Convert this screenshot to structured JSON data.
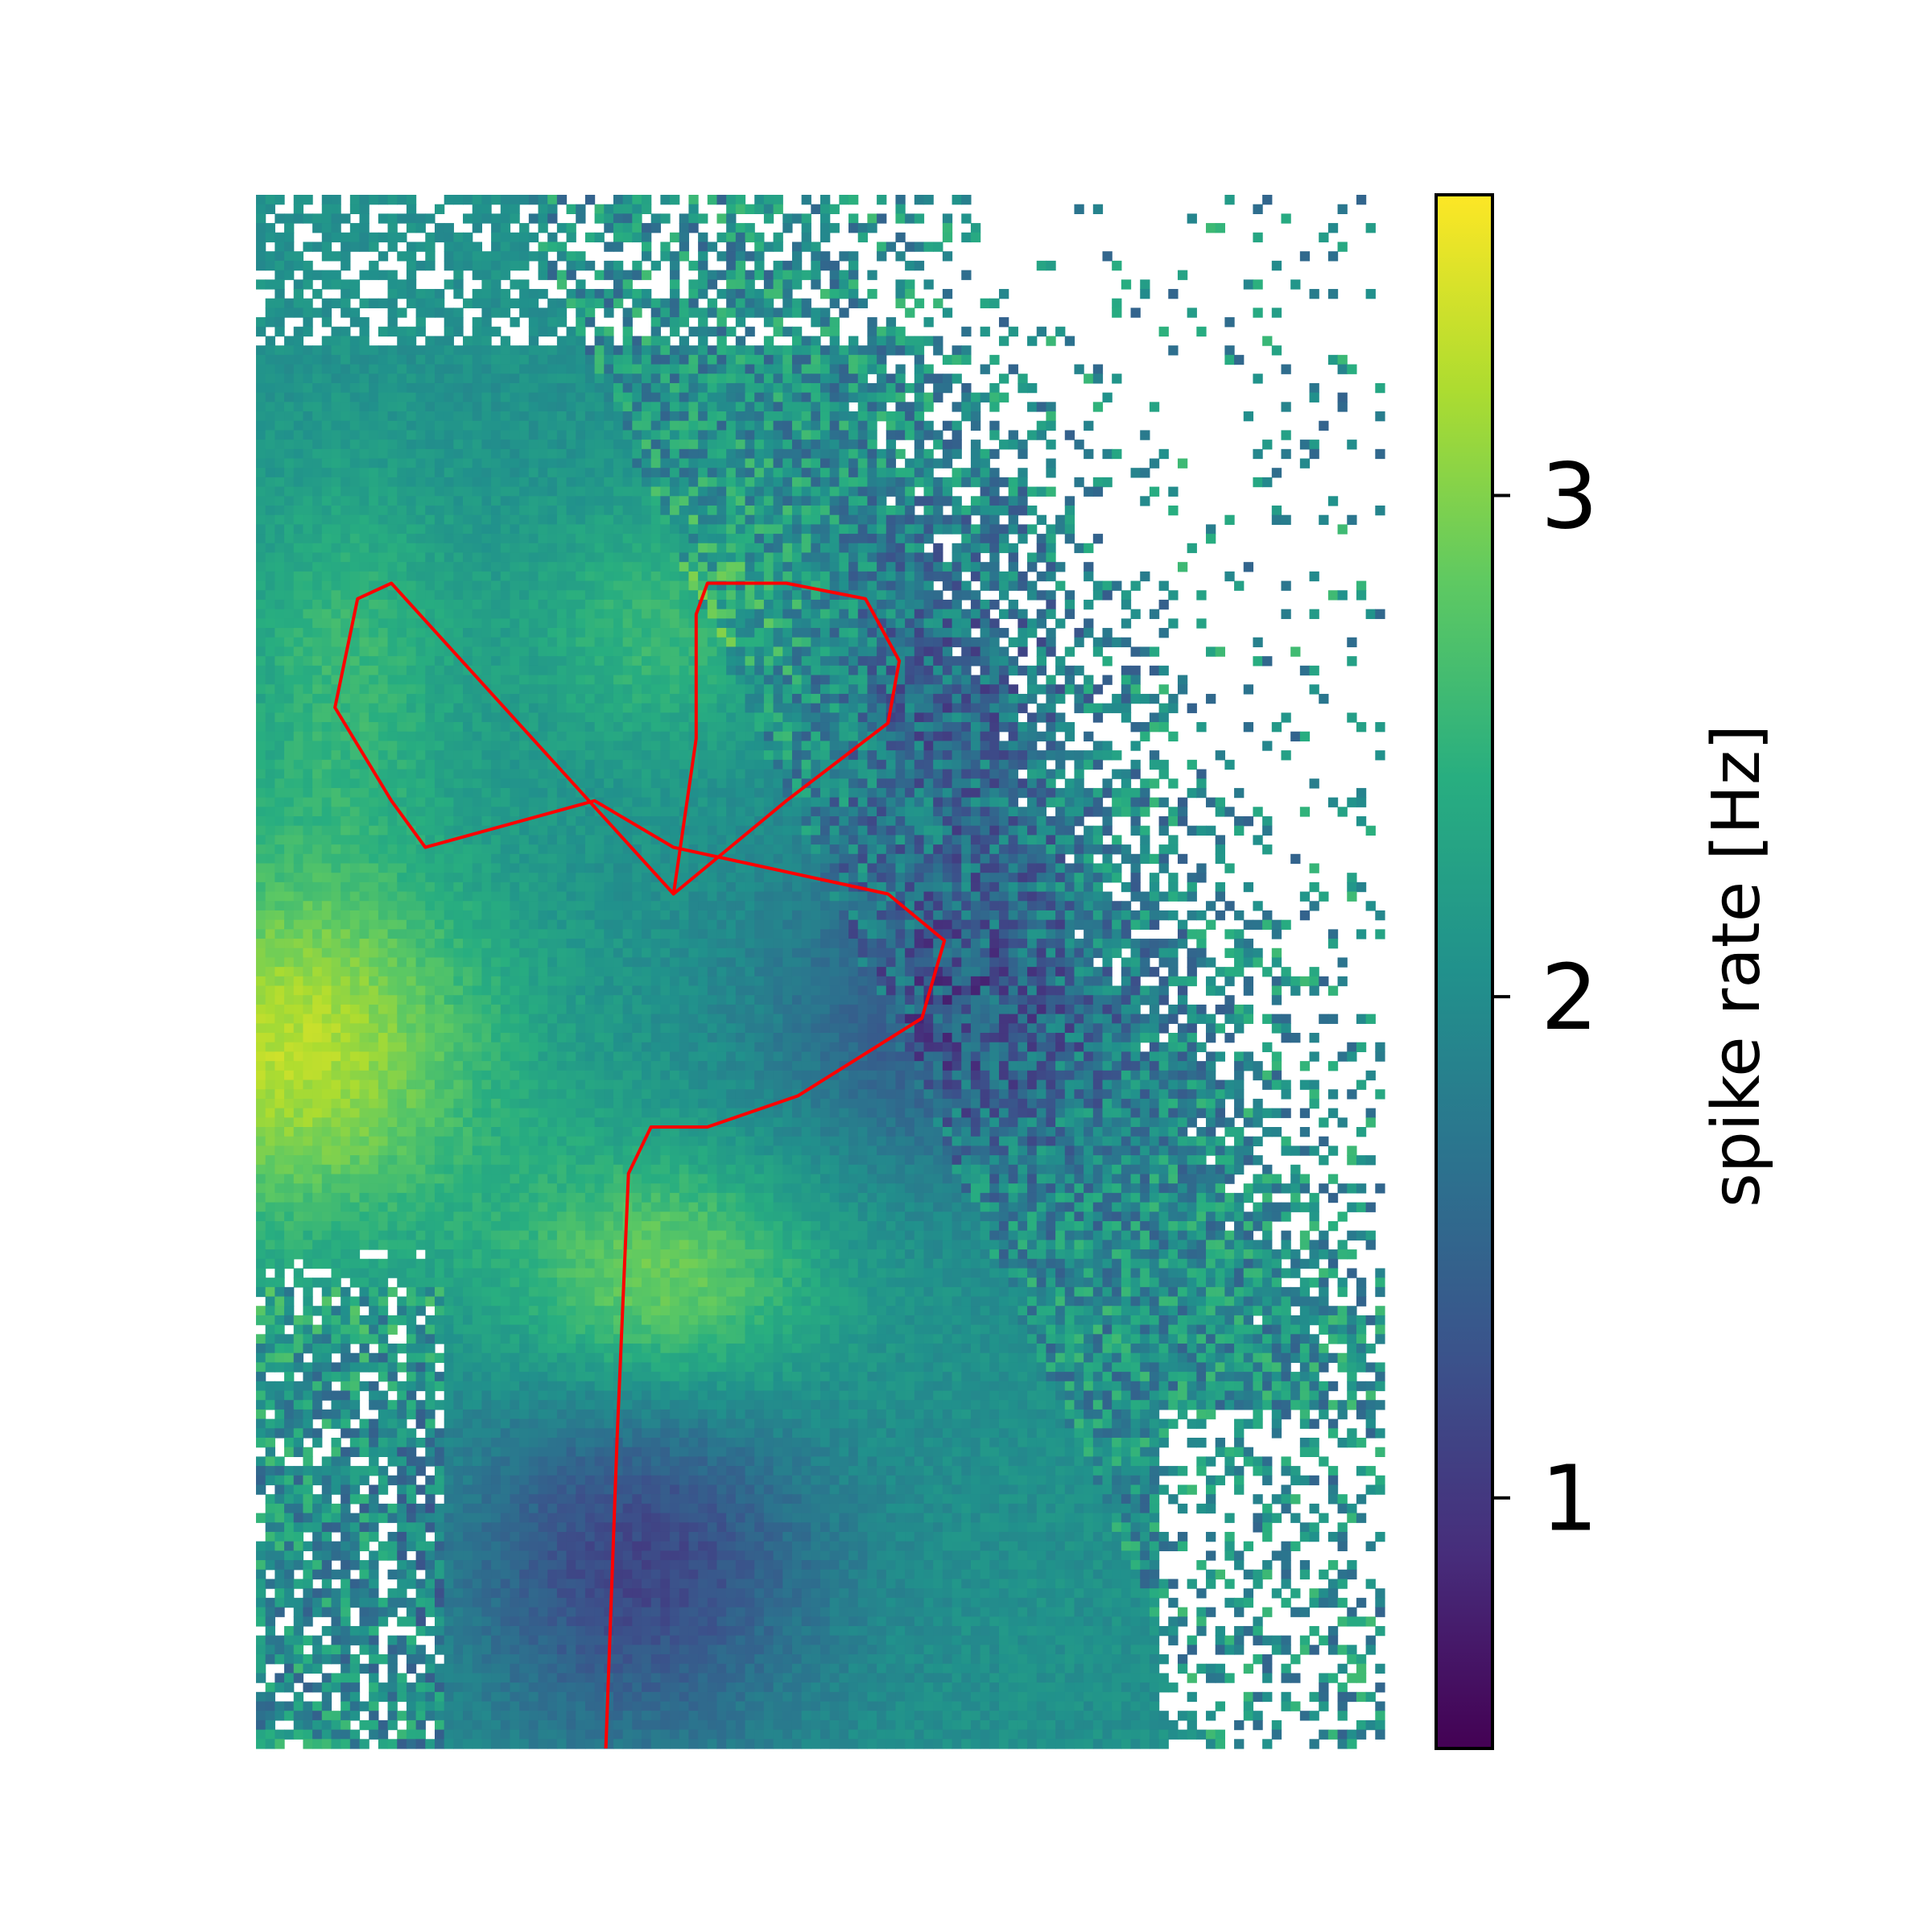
{
  "chart_data": {
    "type": "heatmap",
    "title": "",
    "xlabel": "",
    "ylabel": "",
    "axes_visible": false,
    "colormap": "viridis",
    "colorbar": {
      "label": "spike rate [Hz]",
      "range": [
        0.5,
        3.6
      ],
      "ticks": [
        1,
        2,
        3
      ],
      "tick_labels": [
        "1",
        "2",
        "3"
      ],
      "placement": "right"
    },
    "heatmap_description_values": {
      "grid_cols": 120,
      "grid_rows": 165,
      "background_level_hz": 2.1,
      "high_regions_hz": 3.5,
      "low_regions_hz": 1.0,
      "missing_regions": "white (no data)"
    },
    "overlay": {
      "type": "line",
      "color": "#ff0000",
      "shape": "trefoil trajectory with stem",
      "points_normalized_to_plot": [
        [
          0.31,
          1.0
        ],
        [
          0.32,
          0.8
        ],
        [
          0.33,
          0.63
        ],
        [
          0.35,
          0.6
        ],
        [
          0.4,
          0.6
        ],
        [
          0.48,
          0.58
        ],
        [
          0.59,
          0.53
        ],
        [
          0.61,
          0.48
        ],
        [
          0.56,
          0.45
        ],
        [
          0.37,
          0.42
        ],
        [
          0.3,
          0.39
        ],
        [
          0.15,
          0.42
        ],
        [
          0.12,
          0.39
        ],
        [
          0.07,
          0.33
        ],
        [
          0.09,
          0.26
        ],
        [
          0.12,
          0.25
        ],
        [
          0.37,
          0.45
        ],
        [
          0.47,
          0.39
        ],
        [
          0.56,
          0.34
        ],
        [
          0.57,
          0.3
        ],
        [
          0.54,
          0.26
        ],
        [
          0.47,
          0.25
        ],
        [
          0.4,
          0.25
        ],
        [
          0.39,
          0.27
        ],
        [
          0.39,
          0.35
        ],
        [
          0.37,
          0.45
        ]
      ]
    }
  }
}
